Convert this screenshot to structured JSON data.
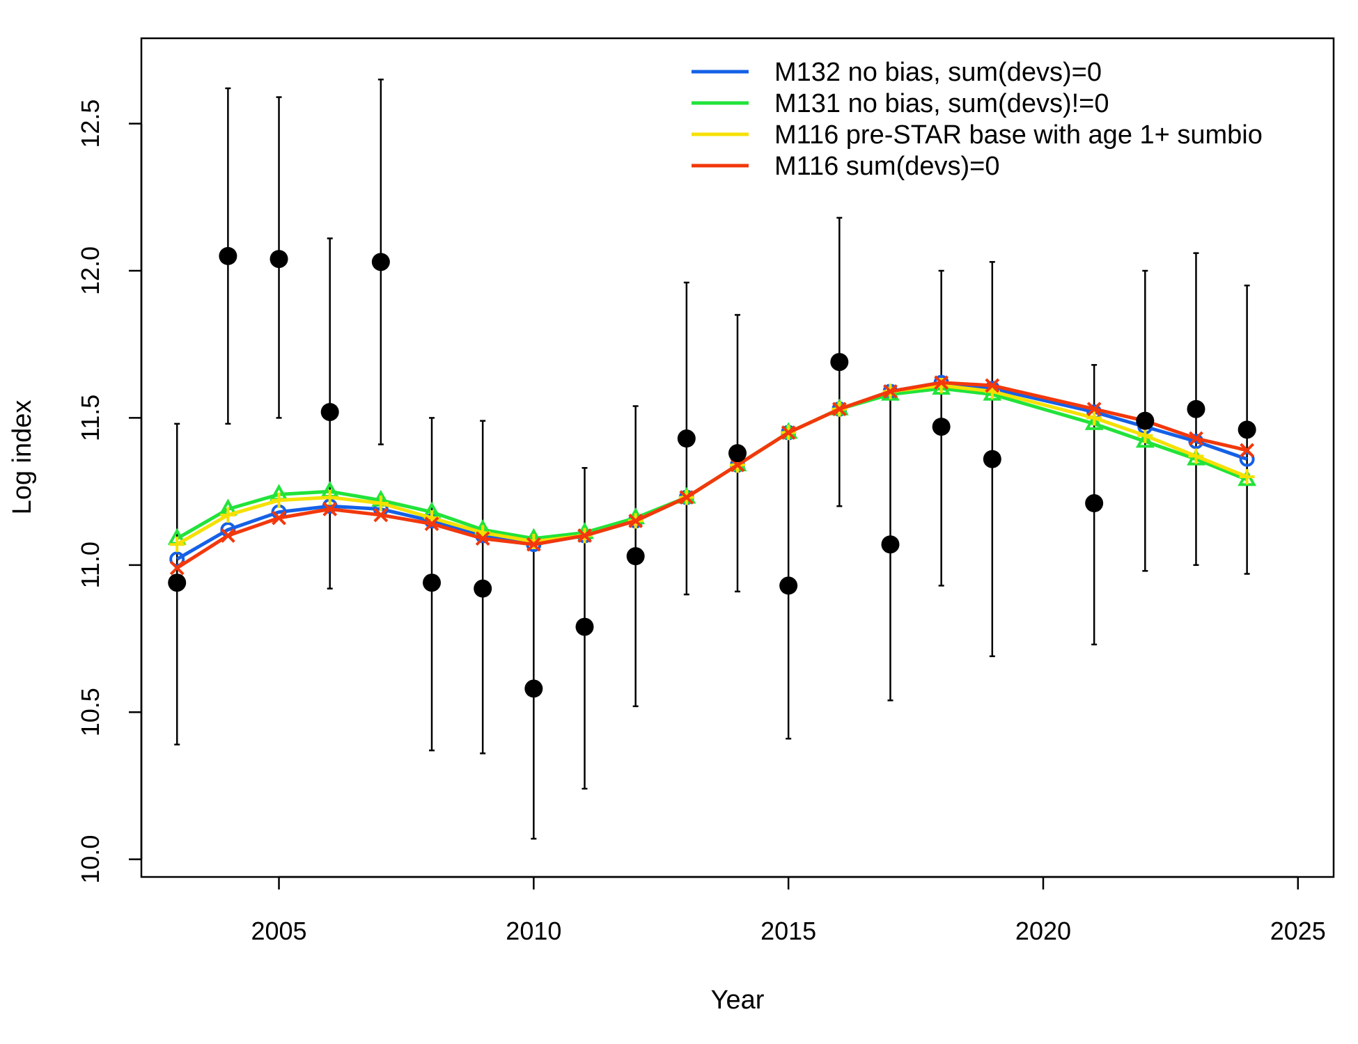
{
  "chart_data": {
    "type": "line",
    "title": "",
    "xlabel": "Year",
    "ylabel": "Log index",
    "xlim": [
      2002.3,
      2025.7
    ],
    "ylim": [
      9.94,
      12.79
    ],
    "x_ticks": [
      "2005",
      "2010",
      "2015",
      "2020",
      "2025"
    ],
    "y_ticks": [
      "10.0",
      "10.5",
      "11.0",
      "11.5",
      "12.0",
      "12.5"
    ],
    "legend_position": "top-right",
    "colors": {
      "observed": "#000000",
      "M132": "#1560e6",
      "M131": "#22e33a",
      "M116_base": "#f5e000",
      "M116_sum": "#f2380c"
    },
    "observed": {
      "x": [
        2003,
        2004,
        2005,
        2006,
        2007,
        2008,
        2009,
        2010,
        2011,
        2012,
        2013,
        2014,
        2015,
        2016,
        2017,
        2018,
        2019,
        2021,
        2022,
        2023,
        2024
      ],
      "y": [
        10.94,
        12.05,
        12.04,
        11.52,
        12.03,
        10.94,
        10.92,
        10.58,
        10.79,
        11.03,
        11.43,
        11.38,
        10.93,
        11.69,
        11.07,
        11.47,
        11.36,
        11.21,
        11.49,
        11.53,
        11.46
      ],
      "lower": [
        10.39,
        11.48,
        11.5,
        10.92,
        11.41,
        10.37,
        10.36,
        10.07,
        10.24,
        10.52,
        10.9,
        10.91,
        10.41,
        11.2,
        10.54,
        10.93,
        10.69,
        10.73,
        10.98,
        11.0,
        10.97
      ],
      "upper": [
        11.48,
        12.62,
        12.59,
        12.11,
        12.65,
        11.5,
        11.49,
        11.09,
        11.33,
        11.54,
        11.96,
        11.85,
        11.45,
        12.18,
        11.6,
        12.0,
        12.03,
        11.68,
        12.0,
        12.06,
        11.95
      ]
    },
    "x": [
      2003,
      2004,
      2005,
      2006,
      2007,
      2008,
      2009,
      2010,
      2011,
      2012,
      2013,
      2014,
      2015,
      2016,
      2017,
      2018,
      2019,
      2021,
      2022,
      2023,
      2024
    ],
    "series": [
      {
        "name": "M132 no bias, sum(devs)=0",
        "key": "M132",
        "marker": "circle",
        "values": [
          11.02,
          11.12,
          11.18,
          11.2,
          11.19,
          11.15,
          11.1,
          11.07,
          11.1,
          11.15,
          11.23,
          11.34,
          11.45,
          11.53,
          11.59,
          11.62,
          11.6,
          11.52,
          11.47,
          11.42,
          11.36
        ]
      },
      {
        "name": "M131 no bias, sum(devs)!=0",
        "key": "M131",
        "marker": "triangle",
        "values": [
          11.09,
          11.19,
          11.24,
          11.25,
          11.22,
          11.18,
          11.12,
          11.09,
          11.11,
          11.16,
          11.23,
          11.34,
          11.45,
          11.53,
          11.58,
          11.6,
          11.58,
          11.48,
          11.42,
          11.36,
          11.29
        ]
      },
      {
        "name": "M116 pre-STAR base with age 1+ sumbio",
        "key": "M116_base",
        "marker": "plus",
        "values": [
          11.07,
          11.17,
          11.22,
          11.23,
          11.21,
          11.16,
          11.11,
          11.08,
          11.1,
          11.15,
          11.23,
          11.34,
          11.45,
          11.53,
          11.59,
          11.61,
          11.59,
          11.5,
          11.44,
          11.37,
          11.3
        ]
      },
      {
        "name": "M116 sum(devs)=0",
        "key": "M116_sum",
        "marker": "cross",
        "values": [
          10.99,
          11.1,
          11.16,
          11.19,
          11.17,
          11.14,
          11.09,
          11.07,
          11.1,
          11.15,
          11.23,
          11.34,
          11.45,
          11.53,
          11.59,
          11.62,
          11.61,
          11.53,
          11.49,
          11.43,
          11.39
        ]
      }
    ]
  }
}
